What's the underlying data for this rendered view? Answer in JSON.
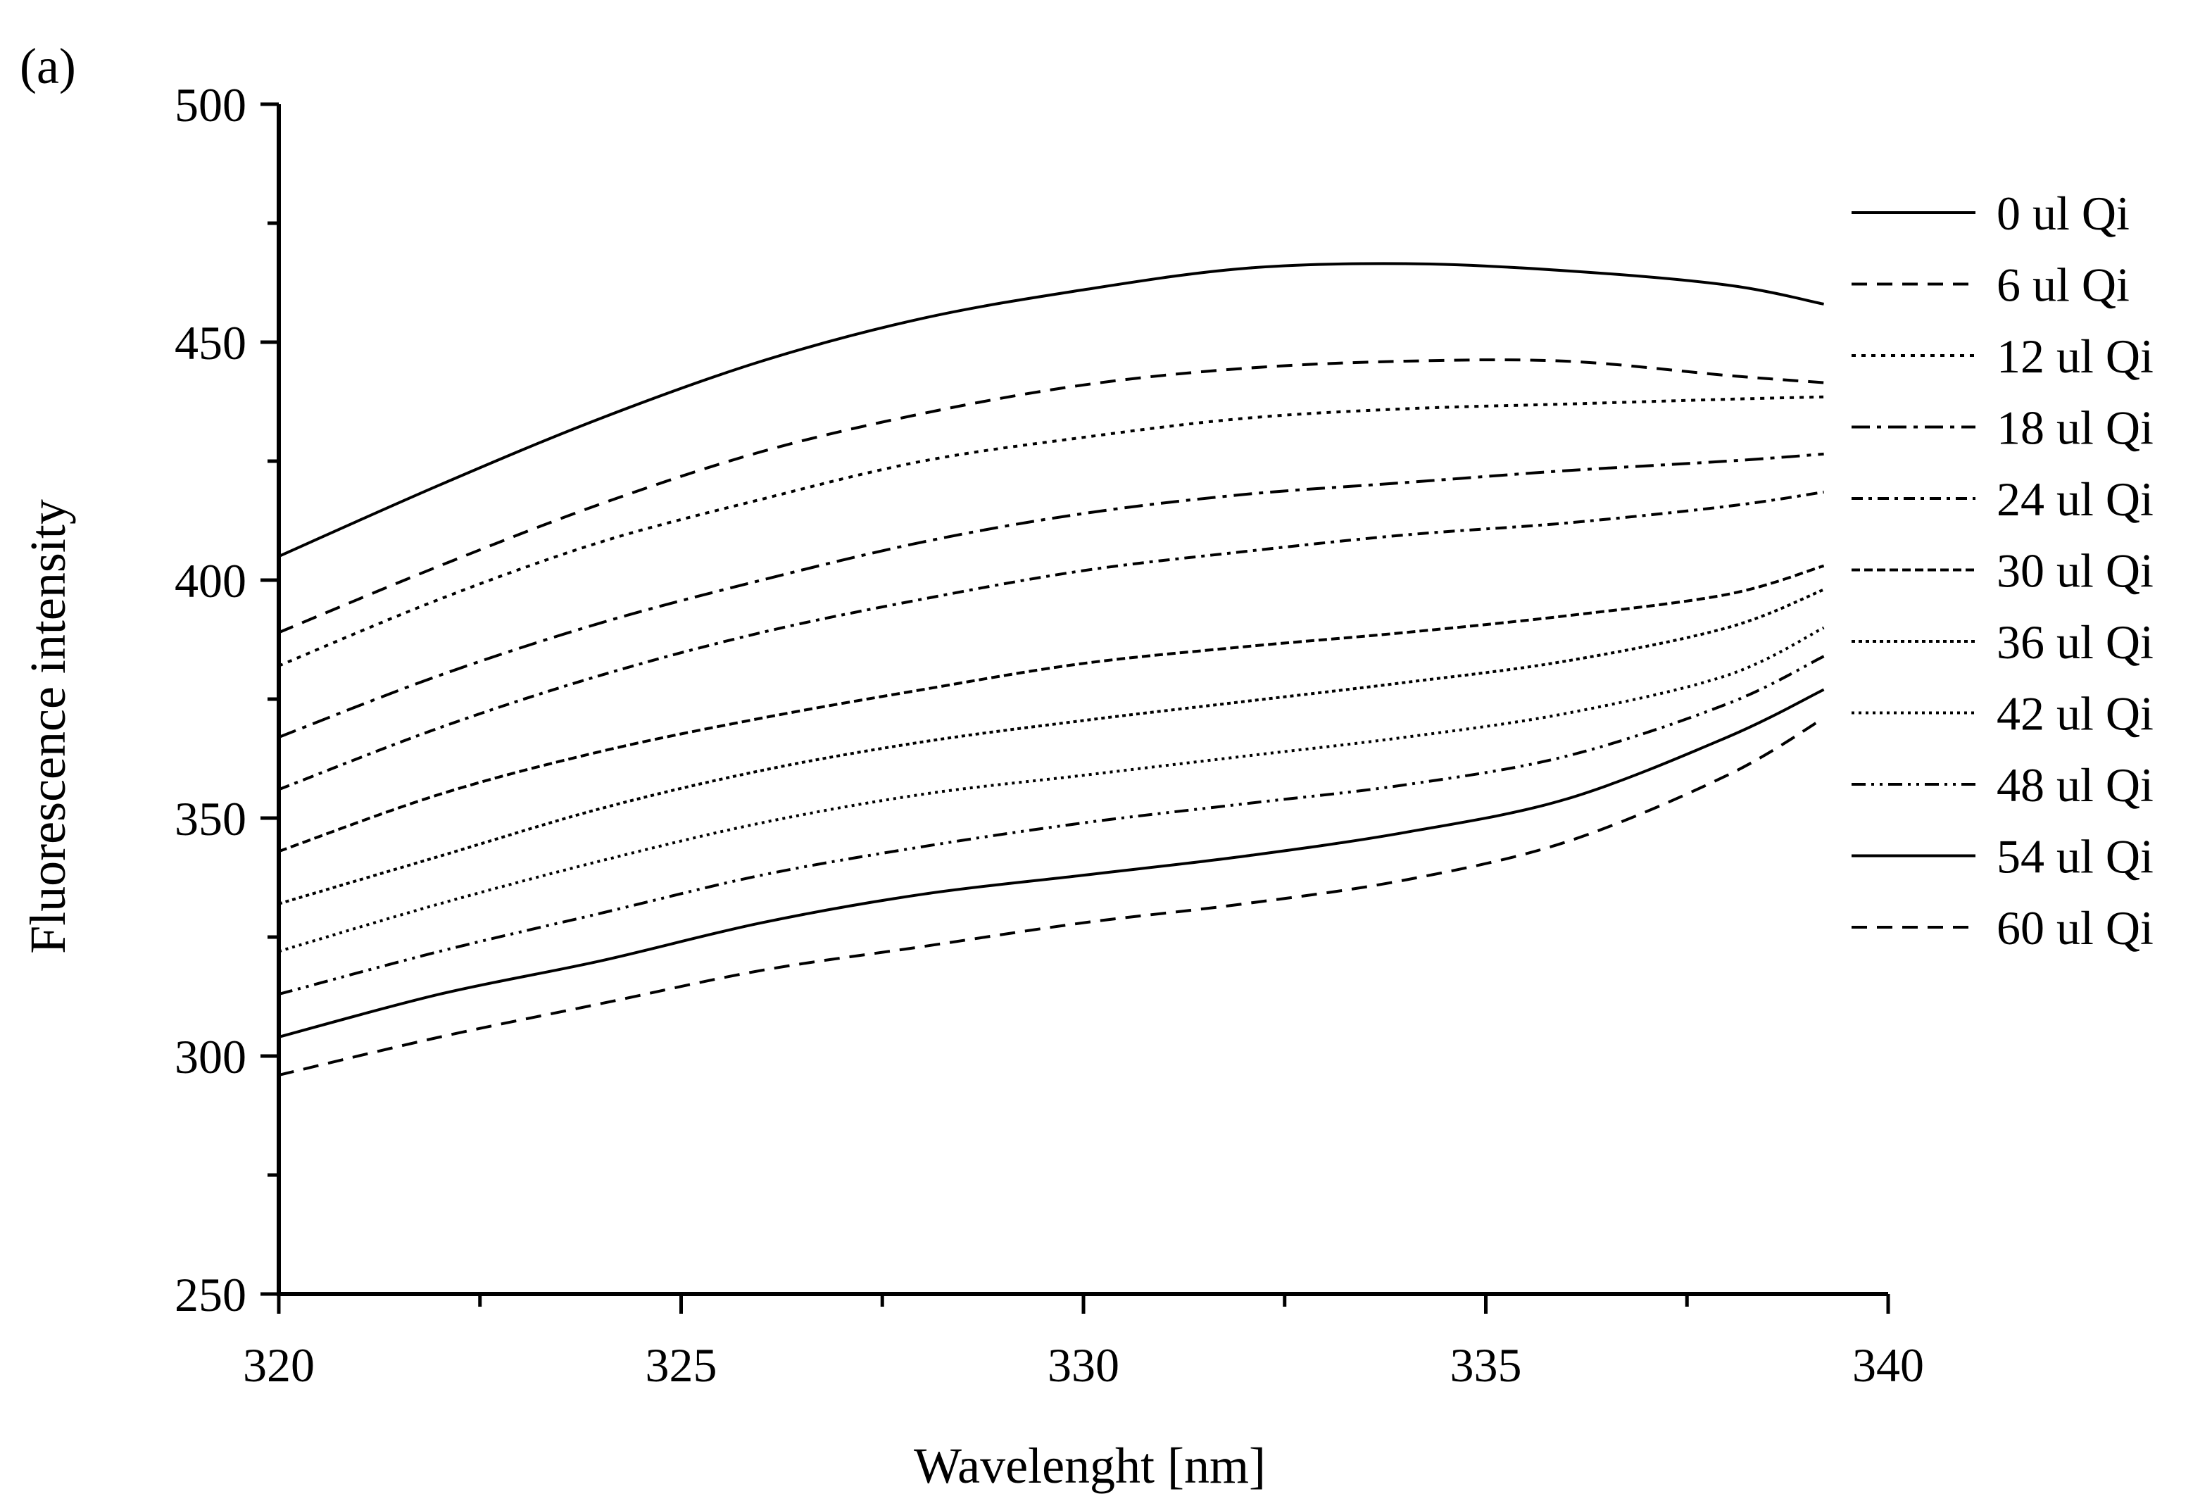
{
  "panel_label": "(a)",
  "chart_data": {
    "type": "line",
    "title": "",
    "xlabel": "Wavelenght [nm]",
    "ylabel": "Fluorescence intensity",
    "xlim": [
      320,
      340
    ],
    "ylim": [
      250,
      500
    ],
    "xticks": [
      320,
      325,
      330,
      335,
      340
    ],
    "xtick_labels": [
      "320",
      "325",
      "330",
      "335",
      "340"
    ],
    "yticks": [
      250,
      300,
      350,
      400,
      450,
      500
    ],
    "ytick_labels": [
      "250",
      "300",
      "350",
      "400",
      "450",
      "500"
    ],
    "legend_position": "right",
    "grid": false,
    "x": [
      320,
      322,
      324,
      326,
      328,
      330,
      332,
      334,
      336,
      338,
      339.2
    ],
    "series": [
      {
        "name": "0 ul Qi",
        "dash": "solid",
        "values": [
          405,
          420,
          434,
          446,
          455,
          461,
          465.5,
          466.5,
          465,
          462,
          458
        ]
      },
      {
        "name": "6 ul Qi",
        "dash": "dash",
        "values": [
          389,
          403,
          416,
          427,
          435,
          441,
          444.5,
          446,
          446,
          443,
          441.5
        ]
      },
      {
        "name": "12 ul Qi",
        "dash": "dot",
        "values": [
          382,
          396,
          408,
          417,
          425,
          430,
          434,
          436,
          437,
          438,
          438.5
        ]
      },
      {
        "name": "18 ul Qi",
        "dash": "dashdot",
        "values": [
          367,
          380,
          391,
          400,
          408,
          414,
          418,
          420.5,
          423,
          425,
          426.5
        ]
      },
      {
        "name": "24 ul Qi",
        "dash": "dashdot2",
        "values": [
          356,
          369,
          380,
          389,
          396,
          402,
          406,
          409.5,
          412,
          415.5,
          418.5
        ]
      },
      {
        "name": "30 ul Qi",
        "dash": "dash2",
        "values": [
          343,
          355,
          364,
          371,
          377,
          382.5,
          386,
          389,
          392.5,
          397,
          403
        ]
      },
      {
        "name": "36 ul Qi",
        "dash": "dot2",
        "values": [
          332,
          342,
          352,
          360,
          366,
          370.5,
          374.5,
          378.5,
          383,
          390,
          398
        ]
      },
      {
        "name": "42 ul Qi",
        "dash": "dot3",
        "values": [
          322,
          332,
          341,
          349,
          355,
          359,
          363,
          367,
          372,
          380,
          390
        ]
      },
      {
        "name": "48 ul Qi",
        "dash": "dashdot3",
        "values": [
          313,
          322,
          330,
          338,
          344,
          349,
          353,
          357,
          363,
          374,
          384
        ]
      },
      {
        "name": "54 ul Qi",
        "dash": "solid",
        "values": [
          304,
          313,
          320,
          328,
          334,
          338,
          342,
          347,
          354,
          367,
          377
        ]
      },
      {
        "name": "60 ul Qi",
        "dash": "dash",
        "values": [
          296,
          304,
          311,
          318,
          323,
          328,
          332,
          337,
          345,
          359,
          371
        ]
      }
    ]
  }
}
